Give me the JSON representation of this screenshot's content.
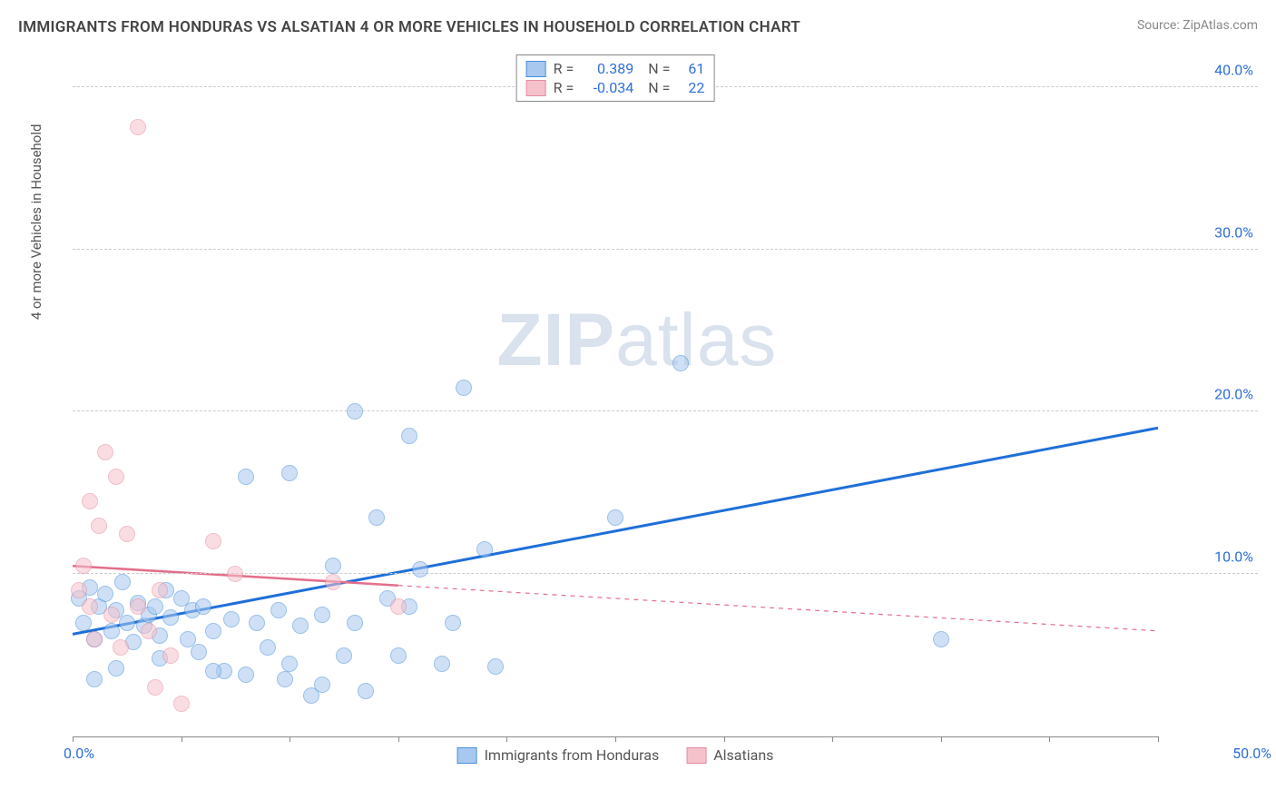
{
  "title": "IMMIGRANTS FROM HONDURAS VS ALSATIAN 4 OR MORE VEHICLES IN HOUSEHOLD CORRELATION CHART",
  "source": "Source: ZipAtlas.com",
  "watermark_zip": "ZIP",
  "watermark_atlas": "atlas",
  "y_axis_label": "4 or more Vehicles in Household",
  "x_origin": "0.0%",
  "x_max": "50.0%",
  "chart": {
    "type": "scatter",
    "background_color": "#ffffff",
    "grid_color": "#cccccc",
    "axis_color": "#888888",
    "xlim": [
      0,
      50
    ],
    "ylim": [
      0,
      42
    ],
    "x_ticks": [
      0,
      5,
      10,
      15,
      20,
      25,
      30,
      35,
      40,
      45,
      50
    ],
    "y_gridlines": [
      {
        "value": 10,
        "label": "10.0%"
      },
      {
        "value": 20,
        "label": "20.0%"
      },
      {
        "value": 30,
        "label": "30.0%"
      },
      {
        "value": 40,
        "label": "40.0%"
      }
    ],
    "marker_radius": 9,
    "marker_opacity": 0.55,
    "series": [
      {
        "name": "Immigrants from Honduras",
        "color_fill": "#a8c8f0",
        "color_stroke": "#4a8fd8",
        "trend_color": "#1f6fd8",
        "trend_width": 3,
        "r_label": "R =",
        "r_value": "0.389",
        "n_label": "N =",
        "n_value": "61",
        "trend": {
          "x1": 0,
          "y1": 6.3,
          "x2": 50,
          "y2": 19.0,
          "solid_until_x": 50
        },
        "points": [
          [
            0.3,
            8.5
          ],
          [
            0.5,
            7.0
          ],
          [
            0.8,
            9.2
          ],
          [
            1.0,
            6.0
          ],
          [
            1.2,
            8.0
          ],
          [
            1.5,
            8.8
          ],
          [
            1.8,
            6.5
          ],
          [
            2.0,
            7.8
          ],
          [
            2.3,
            9.5
          ],
          [
            2.5,
            7.0
          ],
          [
            2.8,
            5.8
          ],
          [
            3.0,
            8.2
          ],
          [
            3.3,
            6.8
          ],
          [
            3.5,
            7.5
          ],
          [
            3.8,
            8.0
          ],
          [
            4.0,
            6.2
          ],
          [
            4.3,
            9.0
          ],
          [
            4.5,
            7.3
          ],
          [
            5.0,
            8.5
          ],
          [
            5.3,
            6.0
          ],
          [
            5.5,
            7.8
          ],
          [
            5.8,
            5.2
          ],
          [
            6.0,
            8.0
          ],
          [
            6.5,
            6.5
          ],
          [
            7.0,
            4.0
          ],
          [
            7.3,
            7.2
          ],
          [
            8.0,
            16.0
          ],
          [
            8.5,
            7.0
          ],
          [
            9.0,
            5.5
          ],
          [
            9.5,
            7.8
          ],
          [
            10.0,
            16.2
          ],
          [
            10.0,
            4.5
          ],
          [
            10.5,
            6.8
          ],
          [
            11.0,
            2.5
          ],
          [
            11.5,
            7.5
          ],
          [
            12.0,
            10.5
          ],
          [
            12.5,
            5.0
          ],
          [
            13.0,
            7.0
          ],
          [
            13.0,
            20.0
          ],
          [
            13.5,
            2.8
          ],
          [
            14.0,
            13.5
          ],
          [
            14.5,
            8.5
          ],
          [
            15.0,
            5.0
          ],
          [
            15.5,
            18.5
          ],
          [
            15.5,
            8.0
          ],
          [
            16.0,
            10.3
          ],
          [
            17.0,
            4.5
          ],
          [
            17.5,
            7.0
          ],
          [
            18.0,
            21.5
          ],
          [
            19.0,
            11.5
          ],
          [
            19.5,
            4.3
          ],
          [
            25.0,
            13.5
          ],
          [
            28.0,
            23.0
          ],
          [
            40.0,
            6.0
          ],
          [
            1.0,
            3.5
          ],
          [
            2.0,
            4.2
          ],
          [
            4.0,
            4.8
          ],
          [
            6.5,
            4.0
          ],
          [
            8.0,
            3.8
          ],
          [
            9.8,
            3.5
          ],
          [
            11.5,
            3.2
          ]
        ]
      },
      {
        "name": "Alsatians",
        "color_fill": "#f5c2cc",
        "color_stroke": "#e58ba0",
        "trend_color": "#e36f8a",
        "trend_width": 2.5,
        "r_label": "R =",
        "r_value": "-0.034",
        "n_label": "N =",
        "n_value": "22",
        "trend": {
          "x1": 0,
          "y1": 10.5,
          "x2": 50,
          "y2": 6.5,
          "solid_until_x": 15
        },
        "points": [
          [
            0.3,
            9.0
          ],
          [
            0.5,
            10.5
          ],
          [
            0.8,
            8.0
          ],
          [
            0.8,
            14.5
          ],
          [
            1.0,
            6.0
          ],
          [
            1.2,
            13.0
          ],
          [
            1.5,
            17.5
          ],
          [
            1.8,
            7.5
          ],
          [
            2.0,
            16.0
          ],
          [
            2.2,
            5.5
          ],
          [
            2.5,
            12.5
          ],
          [
            3.0,
            8.0
          ],
          [
            3.0,
            37.5
          ],
          [
            3.5,
            6.5
          ],
          [
            3.8,
            3.0
          ],
          [
            4.0,
            9.0
          ],
          [
            4.5,
            5.0
          ],
          [
            5.0,
            2.0
          ],
          [
            6.5,
            12.0
          ],
          [
            7.5,
            10.0
          ],
          [
            12.0,
            9.5
          ],
          [
            15.0,
            8.0
          ]
        ]
      }
    ]
  }
}
